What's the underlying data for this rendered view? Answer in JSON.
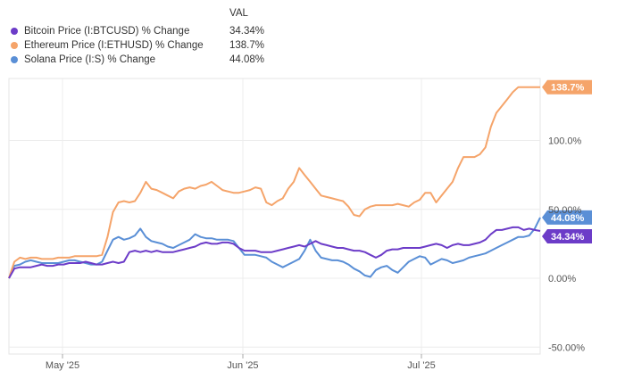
{
  "legend": {
    "header": "VAL",
    "items": [
      {
        "name": "Bitcoin Price (I:BTCUSD) % Change",
        "value": "34.34%",
        "color": "#6c3cc8"
      },
      {
        "name": "Ethereum Price (I:ETHUSD) % Change",
        "value": "138.7%",
        "color": "#f5a46a"
      },
      {
        "name": "Solana Price (I:S) % Change",
        "value": "44.08%",
        "color": "#5a8fd6"
      }
    ]
  },
  "chart_data": {
    "type": "line",
    "x_ticks": [
      "May '25",
      "Jun '25",
      "Jul '25"
    ],
    "y_ticks": [
      "100.0%",
      "50.00%",
      "0.00%",
      "-50.00%"
    ],
    "ylim": [
      -55,
      145
    ],
    "grid": true,
    "legend_placement": "top-left",
    "end_labels": [
      "138.7%",
      "44.08%",
      "34.34%"
    ],
    "series": [
      {
        "name": "Bitcoin Price (I:BTCUSD) % Change",
        "color": "#6c3cc8",
        "values": [
          0,
          7,
          8,
          8,
          8,
          9,
          10,
          9,
          9,
          10,
          10,
          11,
          11,
          11,
          12,
          11,
          10,
          10,
          11,
          12,
          11,
          12,
          19,
          20,
          19,
          20,
          19,
          20,
          19,
          19,
          19,
          20,
          21,
          22,
          23,
          25,
          26,
          25,
          25,
          26,
          26,
          25,
          22,
          20,
          20,
          20,
          19,
          19,
          19,
          20,
          21,
          22,
          23,
          24,
          23,
          25,
          27,
          25,
          24,
          23,
          22,
          22,
          21,
          20,
          20,
          19,
          17,
          15,
          17,
          20,
          21,
          21,
          22,
          22,
          22,
          22,
          23,
          24,
          25,
          24,
          22,
          24,
          25,
          24,
          24,
          25,
          26,
          28,
          32,
          35,
          35,
          36,
          37,
          37,
          35,
          36,
          35,
          34.34
        ]
      },
      {
        "name": "Ethereum Price (I:ETHUSD) % Change",
        "color": "#f5a46a",
        "values": [
          0,
          12,
          15,
          14,
          15,
          15,
          14,
          14,
          14,
          15,
          15,
          15,
          16,
          16,
          16,
          16,
          16,
          17,
          30,
          48,
          55,
          56,
          55,
          56,
          62,
          70,
          65,
          64,
          62,
          60,
          58,
          63,
          65,
          66,
          65,
          67,
          68,
          70,
          67,
          64,
          63,
          62,
          62,
          63,
          64,
          66,
          65,
          55,
          53,
          56,
          58,
          65,
          70,
          80,
          75,
          70,
          65,
          60,
          59,
          58,
          57,
          56,
          52,
          46,
          45,
          50,
          52,
          53,
          53,
          53,
          53,
          54,
          53,
          52,
          55,
          57,
          62,
          62,
          55,
          60,
          65,
          70,
          80,
          88,
          88,
          88,
          90,
          95,
          110,
          120,
          125,
          130,
          135,
          138.7,
          138.7,
          138.7,
          138.7,
          138.7
        ]
      },
      {
        "name": "Solana Price (I:S) % Change",
        "color": "#5a8fd6",
        "values": [
          0,
          9,
          10,
          12,
          13,
          12,
          11,
          11,
          11,
          11,
          12,
          13,
          13,
          12,
          11,
          10,
          10,
          12,
          20,
          28,
          30,
          28,
          29,
          31,
          36,
          30,
          27,
          26,
          25,
          23,
          22,
          24,
          26,
          28,
          32,
          30,
          29,
          29,
          28,
          28,
          28,
          27,
          22,
          17,
          17,
          17,
          16,
          15,
          12,
          10,
          8,
          10,
          12,
          14,
          20,
          28,
          20,
          15,
          14,
          13,
          13,
          12,
          10,
          7,
          5,
          2,
          1,
          6,
          8,
          9,
          6,
          4,
          8,
          12,
          14,
          16,
          15,
          10,
          12,
          14,
          13,
          11,
          12,
          13,
          15,
          16,
          17,
          18,
          20,
          22,
          24,
          26,
          28,
          30,
          30,
          31,
          36,
          44.08
        ]
      }
    ]
  }
}
